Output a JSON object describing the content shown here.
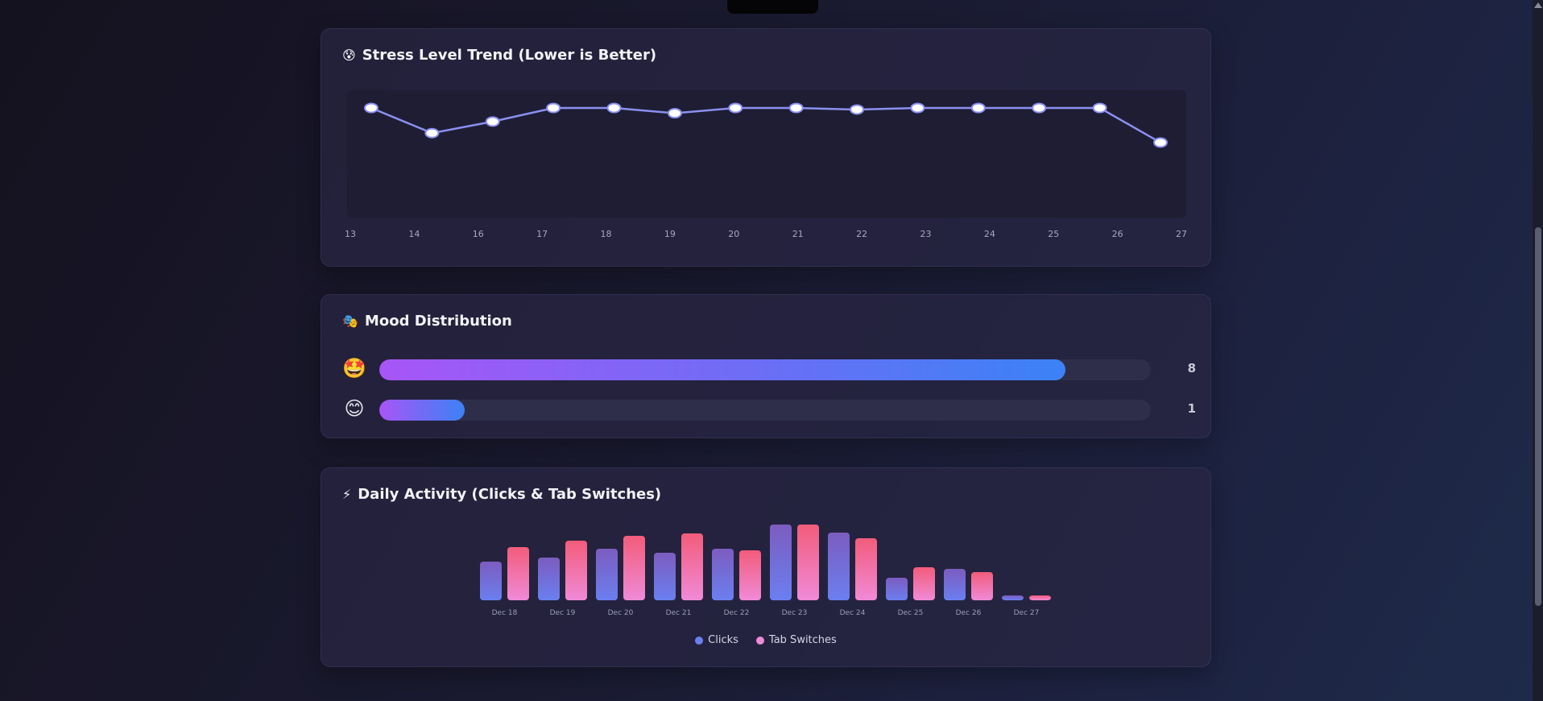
{
  "stress_card": {
    "emoji": "😰",
    "title": "Stress Level Trend (Lower is Better)"
  },
  "mood_card": {
    "emoji": "🎭",
    "title": "Mood Distribution"
  },
  "activity_card": {
    "emoji": "⚡",
    "title": "Daily Activity (Clicks & Tab Switches)"
  },
  "colors": {
    "line": "#8b8ff0",
    "point_fill": "#ffffff",
    "clicks_top": "#7c5cbf",
    "clicks_bottom": "#6b7ff0",
    "tabs_top": "#f25c7a",
    "tabs_bottom": "#f08ad8",
    "mood_start": "#a855f7",
    "mood_end": "#3b82f6"
  },
  "chart_data": [
    {
      "type": "line",
      "title": "Stress Level Trend (Lower is Better)",
      "categories": [
        "13",
        "14",
        "16",
        "17",
        "18",
        "19",
        "20",
        "21",
        "22",
        "23",
        "24",
        "25",
        "26",
        "27"
      ],
      "values": [
        10,
        7.6,
        8.7,
        10,
        10,
        9.5,
        10,
        10,
        9.85,
        10,
        10,
        10,
        10,
        6.7
      ],
      "ylim": [
        0,
        10
      ],
      "xlabel": "",
      "ylabel": "",
      "grid": false
    },
    {
      "type": "bar",
      "title": "Mood Distribution",
      "orientation": "horizontal",
      "categories": [
        "🤩",
        "😊"
      ],
      "values": [
        8,
        1
      ],
      "xlim": [
        0,
        9
      ]
    },
    {
      "type": "bar",
      "title": "Daily Activity (Clicks & Tab Switches)",
      "categories": [
        "Dec 18",
        "Dec 19",
        "Dec 20",
        "Dec 21",
        "Dec 22",
        "Dec 23",
        "Dec 24",
        "Dec 25",
        "Dec 26",
        "Dec 27"
      ],
      "series": [
        {
          "name": "Clicks",
          "values": [
            48,
            53,
            64,
            59,
            64,
            94,
            84,
            28,
            39,
            6
          ]
        },
        {
          "name": "Tab Switches",
          "values": [
            66,
            74,
            80,
            83,
            62,
            94,
            77,
            41,
            35,
            6
          ]
        }
      ],
      "ylim": [
        0,
        94
      ],
      "legend": "bottom-center"
    }
  ]
}
